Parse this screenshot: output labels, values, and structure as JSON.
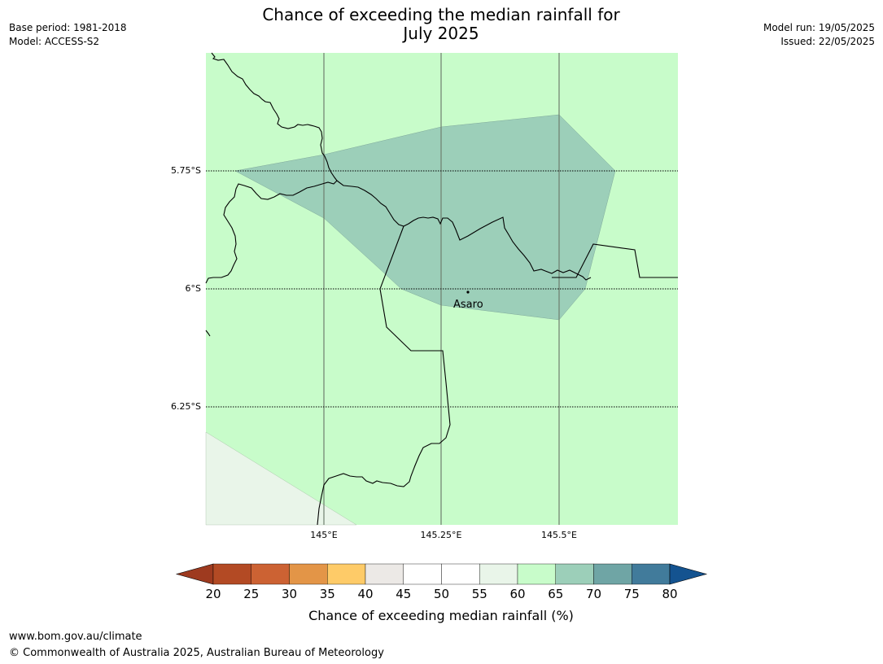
{
  "title_line1": "Chance of exceeding the median rainfall for",
  "title_line2": "July 2025",
  "base_period": "Base period: 1981-2018",
  "model": "Model: ACCESS-S2",
  "model_run": "Model run: 19/05/2025",
  "issued": "Issued: 22/05/2025",
  "map": {
    "lat_labels": [
      "5.75°S",
      "6°S",
      "6.25°S"
    ],
    "lon_labels": [
      "145°E",
      "145.25°E",
      "145.5°E"
    ],
    "place": "Asaro"
  },
  "colorbar": {
    "ticks": [
      "20",
      "25",
      "30",
      "35",
      "40",
      "45",
      "50",
      "55",
      "60",
      "65",
      "70",
      "75",
      "80"
    ],
    "label": "Chance of exceeding median rainfall (%)",
    "colors": [
      "#9e3a1f",
      "#b34a24",
      "#cc6233",
      "#e39547",
      "#fecb68",
      "#ece9e6",
      "#ffffff",
      "#ffffff",
      "#e9f5e9",
      "#c8fcca",
      "#9ccfb9",
      "#6fa5a5",
      "#417b9b",
      "#145390"
    ]
  },
  "footer_url": "www.bom.gov.au/climate",
  "footer_copyright": "© Commonwealth of Australia 2025, Australian Bureau of Meteorology"
}
